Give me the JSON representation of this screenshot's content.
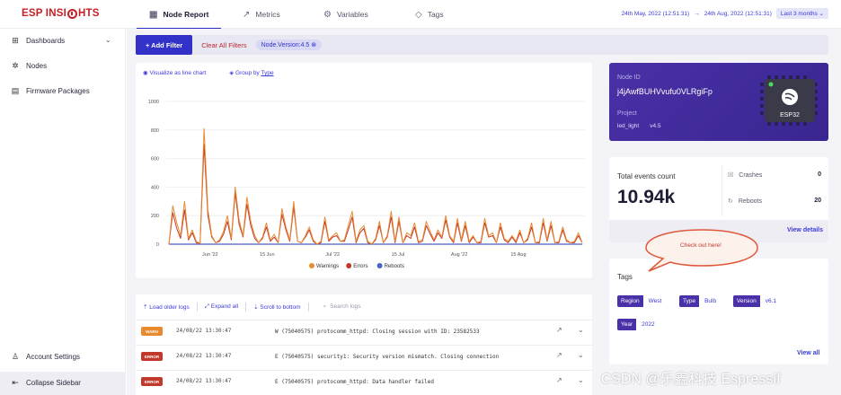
{
  "brand": {
    "logo_text_left": "ESP INSI",
    "logo_text_right": "HTS"
  },
  "tabs": [
    {
      "label": "Node Report",
      "icon": "calendar-icon",
      "active": true
    },
    {
      "label": "Metrics",
      "icon": "trend-icon",
      "active": false
    },
    {
      "label": "Variables",
      "icon": "variables-icon",
      "active": false
    },
    {
      "label": "Tags",
      "icon": "tag-icon",
      "active": false
    }
  ],
  "date_range": {
    "from": "24th May, 2022 (12:51:31)",
    "separator": "→",
    "to": "24th Aug, 2022 (12:51:31)",
    "preset": "Last 3 months"
  },
  "sidebar": {
    "items": [
      {
        "label": "Dashboards",
        "icon": "dashboards-icon",
        "has_chevron": true
      },
      {
        "label": "Nodes",
        "icon": "nodes-icon"
      },
      {
        "label": "Firmware Packages",
        "icon": "packages-icon"
      }
    ],
    "account_settings": "Account Settings",
    "collapse": "Collapse Sidebar"
  },
  "filters": {
    "add_label": "+ Add Filter",
    "clear_label": "Clear All Filters",
    "active_chip": "Node.Version:4.5"
  },
  "chart_toolbar": {
    "visualize": "Visualize as line chart",
    "group_prefix": "Group by",
    "group_value": "Type"
  },
  "chart_data": {
    "type": "line",
    "x_tick_labels": [
      "Jun '22",
      "15 Jun",
      "Jul '22",
      "15 Jul",
      "Aug '22",
      "15 Aug"
    ],
    "y_ticks": [
      0,
      200,
      400,
      600,
      800,
      1000
    ],
    "ylim": [
      0,
      1000
    ],
    "grid": true,
    "legend_position": "bottom",
    "series": [
      {
        "name": "Warnings",
        "color": "#e98a2f",
        "values": [
          0,
          270,
          150,
          60,
          300,
          40,
          100,
          20,
          5,
          810,
          240,
          60,
          10,
          30,
          90,
          200,
          40,
          400,
          170,
          60,
          330,
          160,
          60,
          10,
          50,
          150,
          30,
          70,
          10,
          250,
          120,
          30,
          300,
          20,
          10,
          60,
          120,
          30,
          0,
          20,
          190,
          30,
          60,
          80,
          20,
          30,
          130,
          230,
          20,
          100,
          130,
          20,
          0,
          40,
          160,
          10,
          60,
          230,
          20,
          190,
          10,
          80,
          60,
          150,
          20,
          30,
          160,
          90,
          30,
          100,
          50,
          200,
          60,
          20,
          180,
          30,
          160,
          20,
          60,
          10,
          20,
          180,
          60,
          80,
          10,
          150,
          40,
          20,
          60,
          20,
          100,
          10,
          40,
          150,
          10,
          20,
          180,
          30,
          160,
          10,
          20,
          120,
          30,
          10,
          20,
          80,
          10
        ]
      },
      {
        "name": "Errors",
        "color": "#c0392b",
        "values": [
          0,
          220,
          110,
          40,
          240,
          30,
          80,
          10,
          5,
          700,
          200,
          50,
          10,
          20,
          70,
          160,
          30,
          360,
          140,
          50,
          280,
          130,
          40,
          10,
          40,
          120,
          20,
          50,
          10,
          210,
          100,
          20,
          260,
          20,
          10,
          50,
          100,
          20,
          0,
          10,
          160,
          20,
          50,
          60,
          20,
          20,
          100,
          190,
          10,
          80,
          110,
          10,
          0,
          30,
          130,
          10,
          50,
          190,
          10,
          160,
          10,
          60,
          40,
          120,
          10,
          20,
          130,
          70,
          20,
          80,
          40,
          170,
          50,
          10,
          150,
          20,
          130,
          10,
          50,
          10,
          10,
          150,
          50,
          60,
          10,
          120,
          30,
          10,
          50,
          10,
          80,
          10,
          30,
          120,
          10,
          10,
          150,
          20,
          130,
          10,
          10,
          100,
          20,
          10,
          10,
          60,
          10
        ]
      },
      {
        "name": "Reboots",
        "color": "#4a62c9",
        "values": [
          0,
          0,
          0,
          0,
          0,
          0,
          0,
          0,
          0,
          0,
          0,
          0,
          0,
          0,
          0,
          0,
          0,
          0,
          0,
          0,
          0,
          0,
          0,
          0,
          0,
          0,
          0,
          0,
          0,
          0,
          0,
          0,
          0,
          0,
          0,
          0,
          0,
          0,
          0,
          0,
          0,
          0,
          0,
          0,
          0,
          0,
          0,
          0,
          0,
          0,
          0,
          0,
          0,
          0,
          0,
          0,
          0,
          0,
          0,
          0,
          0,
          0,
          0,
          0,
          0,
          0,
          0,
          0,
          0,
          0,
          0,
          0,
          0,
          0,
          0,
          0,
          0,
          0,
          0,
          0,
          0,
          0,
          0,
          0,
          0,
          0,
          0,
          0,
          0,
          0,
          0,
          0,
          0,
          0,
          0,
          0,
          0,
          0,
          0,
          0,
          0,
          0,
          0,
          0,
          0,
          0,
          0
        ]
      }
    ]
  },
  "logs": {
    "load_older": "Load older logs",
    "expand_all": "Expand all",
    "scroll_bottom": "Scroll to bottom",
    "search_placeholder": "Search logs",
    "rows": [
      {
        "level": "WARN",
        "level_class": "warn",
        "time": "24/08/22 13:30:47",
        "message": "W (75040575) protocomm_httpd: Closing session with ID: 23582533"
      },
      {
        "level": "ERROR",
        "level_class": "error",
        "time": "24/08/22 13:30:47",
        "message": "E (75040575) security1: Security version mismatch. Closing connection"
      },
      {
        "level": "ERROR",
        "level_class": "error",
        "time": "24/08/22 13:30:47",
        "message": "E (75040575) protocomm_httpd: Data handler failed"
      }
    ]
  },
  "node": {
    "id_label": "Node ID",
    "id_value": "j4jAwfBUHVvufu0VLRgiFp",
    "project_label": "Project",
    "project_name": "led_light",
    "project_version": "v4.5",
    "chip_label": "ESP32"
  },
  "events": {
    "total_label": "Total events count",
    "total_value": "10.94k",
    "crashes_label": "Crashes",
    "crashes_value": "0",
    "reboots_label": "Reboots",
    "reboots_value": "20",
    "view_details": "View details"
  },
  "callout": {
    "text": "Check out here!"
  },
  "tags": {
    "title": "Tags",
    "items": [
      {
        "key": "Region",
        "value": "West"
      },
      {
        "key": "Type",
        "value": "Bulb"
      },
      {
        "key": "Version",
        "value": "v6.1"
      },
      {
        "key": "Year",
        "value": "2022"
      }
    ],
    "view_all": "View all"
  },
  "watermark": "CSDN @乐鑫科技 Espressif"
}
